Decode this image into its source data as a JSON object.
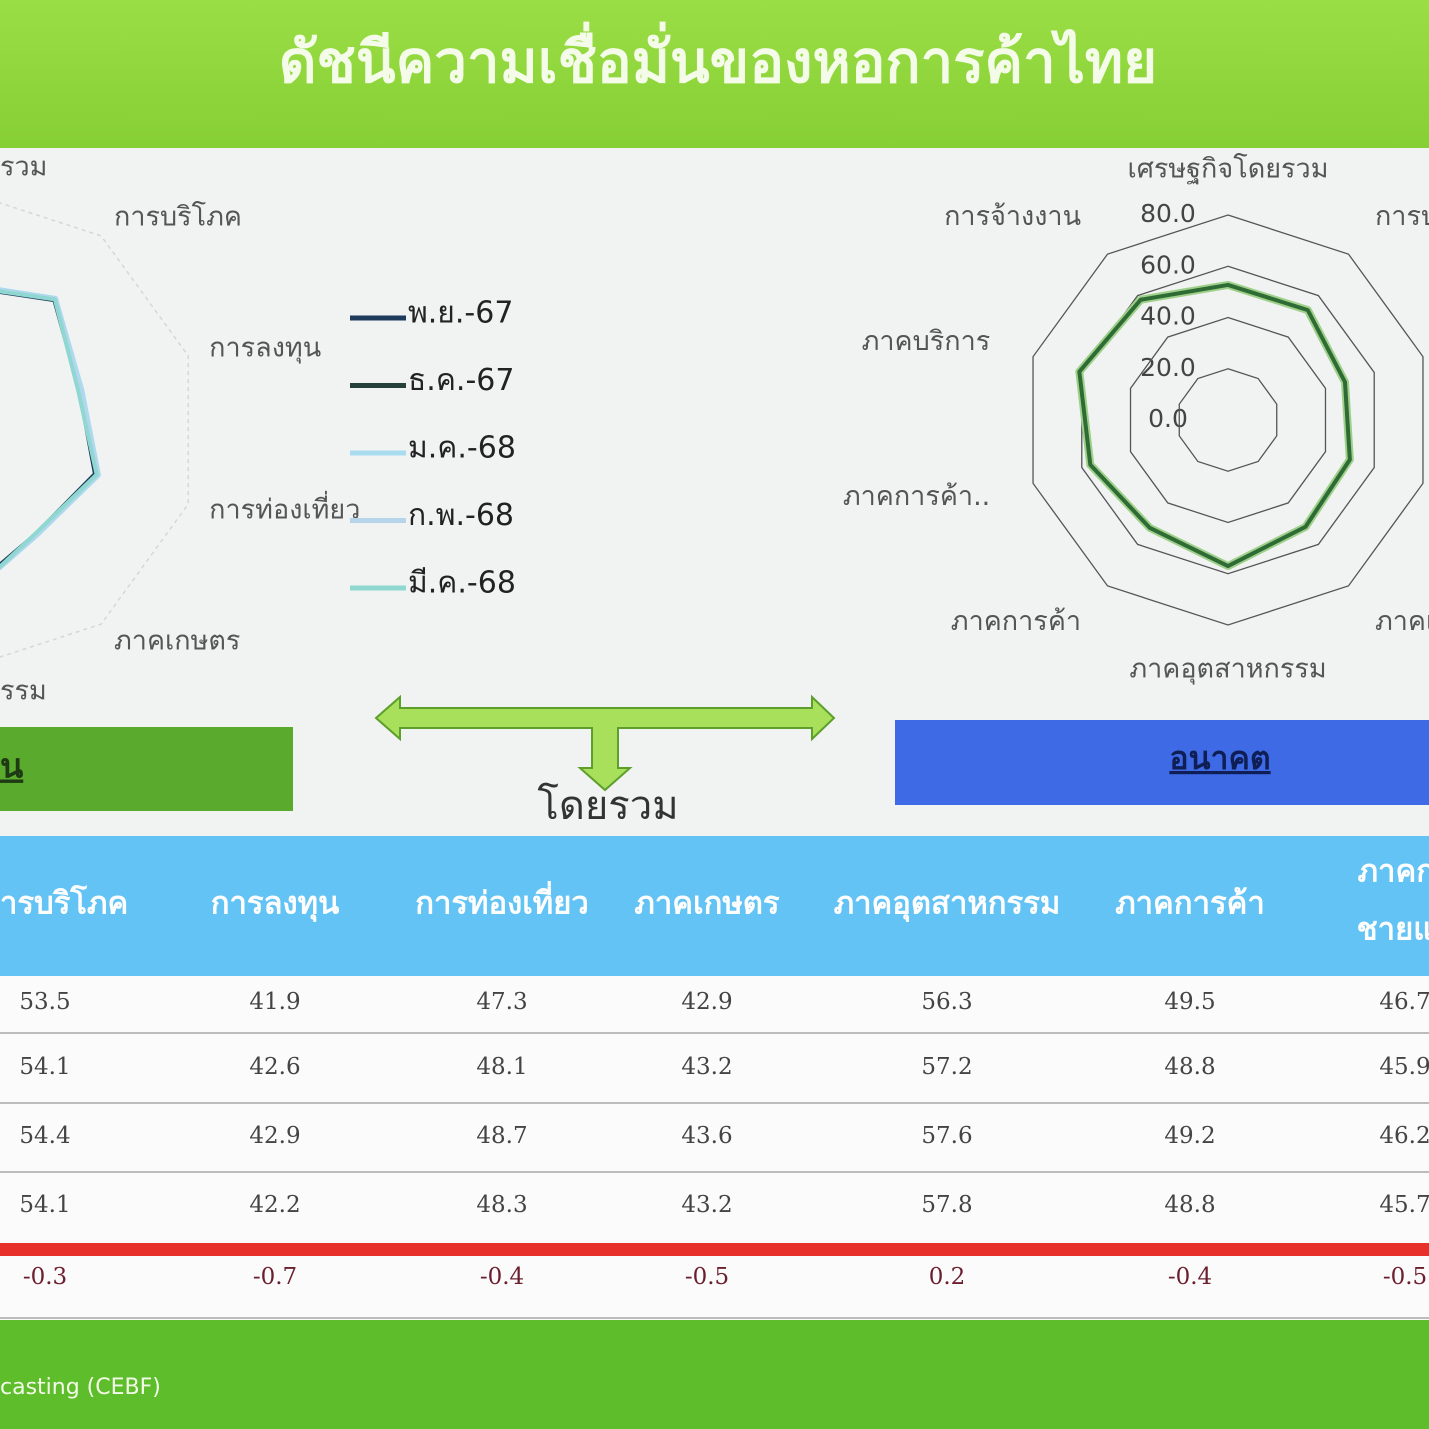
{
  "header": {
    "title": "ดัชนีความเชื่อมั่นของหอการค้าไทย"
  },
  "chart_data": [
    {
      "type": "radar",
      "categories": [
        "รวม",
        "การบริโภค",
        "การลงทุน",
        "การท่องเที่ยว",
        "ภาคเกษตร",
        "รรม",
        null,
        null,
        null,
        null
      ],
      "rlim": [
        0,
        80
      ],
      "series": [
        {
          "name": "พ.ย.-67",
          "color": "#1f3b5c",
          "values": [
            48.0,
            53.5,
            41.9,
            47.3,
            42.9,
            56.3,
            null,
            null,
            null,
            null
          ]
        },
        {
          "name": "ธ.ค.-67",
          "color": "#25413a",
          "values": [
            48.5,
            54.1,
            42.6,
            48.1,
            43.2,
            57.2,
            null,
            null,
            null,
            null
          ]
        },
        {
          "name": "ม.ค.-68",
          "color": "#a9dcef",
          "values": [
            49.0,
            54.4,
            42.9,
            48.7,
            43.6,
            57.6,
            null,
            null,
            null,
            null
          ]
        },
        {
          "name": "ก.พ.-68",
          "color": "#b6d4ea",
          "values": [
            48.5,
            54.1,
            42.2,
            48.3,
            43.2,
            57.8,
            null,
            null,
            null,
            null
          ]
        },
        {
          "name": "มี.ค.-68",
          "color": "#8fd8d2",
          "values": [
            48.2,
            53.8,
            41.5,
            47.9,
            42.7,
            58.0,
            null,
            null,
            null,
            null
          ]
        }
      ]
    },
    {
      "type": "radar",
      "categories": [
        "เศรษฐกิจโดยรวม",
        "การบริ",
        null,
        null,
        "ภาคเก",
        "ภาคอุตสาหกรรม",
        "ภาคการค้า",
        "ภาคการค้า..",
        "ภาคบริการ",
        "การจ้างงาน"
      ],
      "rlim": [
        0,
        80
      ],
      "rticks": [
        {
          "value": 0,
          "label": "0.0"
        },
        {
          "value": 20,
          "label": "20.0"
        },
        {
          "value": 40,
          "label": "40.0"
        },
        {
          "value": 60,
          "label": "60.0"
        },
        {
          "value": 80,
          "label": "80.0"
        }
      ],
      "color": "#2e6b35",
      "values": [
        52.7,
        53,
        48,
        50,
        51.5,
        57,
        52,
        56.5,
        61,
        58
      ]
    }
  ],
  "boxes": {
    "current": "น",
    "future": "อนาคต",
    "arrow_label": "โดยรวม"
  },
  "table": {
    "header": [
      [
        "ารบริโภค"
      ],
      [
        "การลงทุน"
      ],
      [
        "การท่องเที่ยว"
      ],
      [
        "ภาคเกษตร"
      ],
      [
        "ภาคอุตสาหกรรม"
      ],
      [
        "ภาคการค้า"
      ],
      [
        "ภาคกา",
        "ชายแด"
      ]
    ],
    "rows": [
      [
        53.5,
        41.9,
        47.3,
        42.9,
        56.3,
        49.5,
        46.7
      ],
      [
        54.1,
        42.6,
        48.1,
        43.2,
        57.2,
        48.8,
        45.9
      ],
      [
        54.4,
        42.9,
        48.7,
        43.6,
        57.6,
        49.2,
        46.2
      ],
      [
        54.1,
        42.2,
        48.3,
        43.2,
        57.8,
        48.8,
        45.7
      ],
      [
        -0.3,
        -0.7,
        -0.4,
        -0.5,
        0.2,
        -0.4,
        -0.5
      ]
    ]
  },
  "footer": {
    "text": "casting (CEBF)"
  }
}
